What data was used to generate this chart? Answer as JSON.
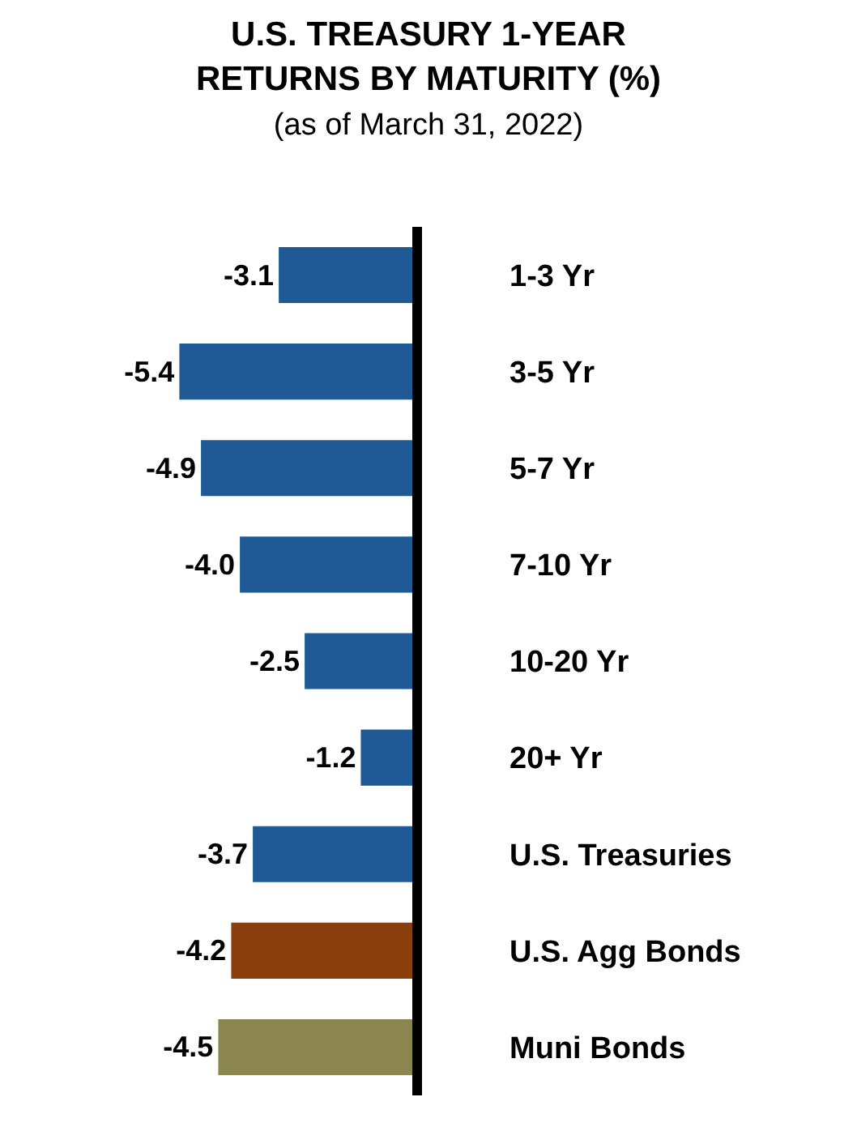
{
  "chart_data": {
    "type": "bar",
    "orientation": "horizontal",
    "title": "U.S. TREASURY 1-YEAR RETURNS BY MATURITY (%)",
    "subtitle": "(as of March 31, 2022)",
    "categories": [
      "1-3 Yr",
      "3-5 Yr",
      "5-7 Yr",
      "7-10 Yr",
      "10-20 Yr",
      "20+ Yr",
      "U.S. Treasuries",
      "U.S. Agg Bonds",
      "Muni Bonds"
    ],
    "values": [
      -3.1,
      -5.4,
      -4.9,
      -4.0,
      -2.5,
      -1.2,
      -3.7,
      -4.2,
      -4.5
    ],
    "value_labels": [
      "-3.1",
      "-5.4",
      "-4.9",
      "-4.0",
      "-2.5",
      "-1.2",
      "-3.7",
      "-4.2",
      "-4.5"
    ],
    "colors": [
      "#1f5a96",
      "#1f5a96",
      "#1f5a96",
      "#1f5a96",
      "#1f5a96",
      "#1f5a96",
      "#1f5a96",
      "#8b3f0c",
      "#8b8550"
    ],
    "tick_labels": "y"
  }
}
